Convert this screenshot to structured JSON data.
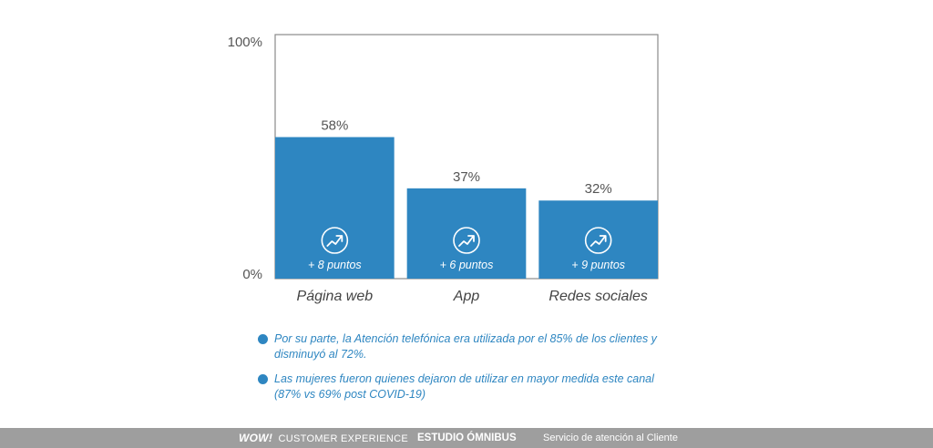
{
  "chart_data": {
    "type": "bar",
    "categories": [
      "Página web",
      "App",
      "Redes sociales"
    ],
    "values": [
      58,
      37,
      32
    ],
    "value_labels": [
      "58%",
      "37%",
      "32%"
    ],
    "changes": [
      "+ 8 puntos",
      "+ 6 puntos",
      "+ 9 puntos"
    ],
    "ylim": [
      0,
      100
    ],
    "y_ticks": [
      "0%",
      "100%"
    ],
    "grid": false,
    "legend": "none",
    "bar_color": "#2e86c1",
    "icon": "trend-up-icon"
  },
  "bullets": [
    "Por su parte, la Atención telefónica era utilizada por el 85% de los clientes y disminuyó al 72%.",
    "Las mujeres fueron quienes dejaron de utilizar en mayor medida este canal (87% vs 69% post COVID-19)"
  ],
  "footer": {
    "logo": "WOW!",
    "brand": "CUSTOMER EXPERIENCE",
    "study": "ESTUDIO ÓMNIBUS",
    "service": "Servicio de atención al Cliente"
  },
  "colors": {
    "accent": "#2e86c1",
    "footer_bg": "#9e9e9e"
  }
}
